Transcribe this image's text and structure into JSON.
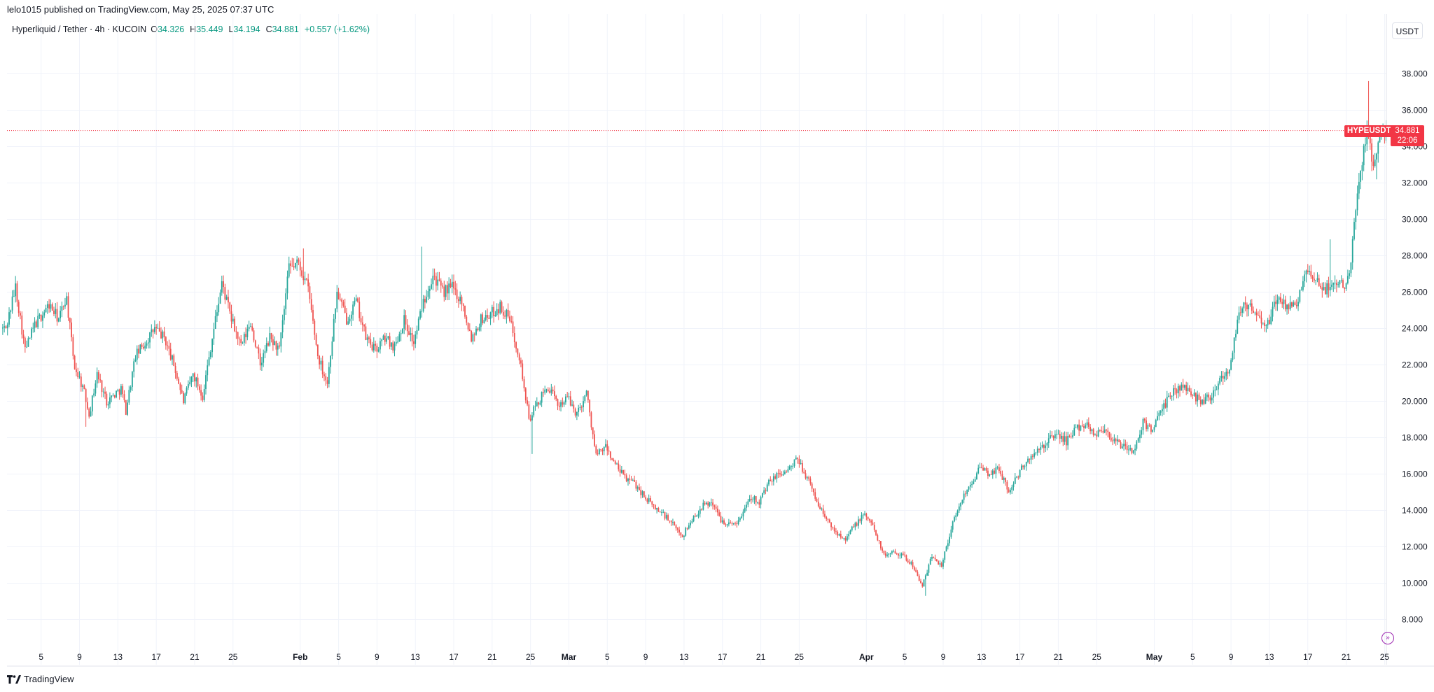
{
  "header": {
    "published": "lelo1015 published on TradingView.com, May 25, 2025 07:37 UTC"
  },
  "legend": {
    "symbol": "Hyperliquid / Tether · 4h · KUCOIN",
    "open_label": "O",
    "open": "34.326",
    "high_label": "H",
    "high": "35.449",
    "low_label": "L",
    "low": "34.194",
    "close_label": "C",
    "close": "34.881",
    "change": "+0.557 (+1.62%)"
  },
  "currency_button": "USDT",
  "price_tag": {
    "symbol": "HYPEUSDT",
    "price": "34.881",
    "countdown": "22:06"
  },
  "footer": {
    "brand": "TradingView"
  },
  "goto_icon": "goto-realtime-icon",
  "colors": {
    "up": "#26a69a",
    "down": "#ef5350",
    "grid": "#f0f3fa",
    "axis_text": "#131722",
    "last_price": "#f23645"
  },
  "chart_data": {
    "type": "candlestick",
    "title": "Hyperliquid / Tether · 4h · KUCOIN",
    "ylim": [
      7,
      39
    ],
    "y_ticks": [
      "8.000",
      "10.000",
      "12.000",
      "14.000",
      "16.000",
      "18.000",
      "20.000",
      "22.000",
      "24.000",
      "26.000",
      "28.000",
      "30.000",
      "32.000",
      "34.000",
      "36.000",
      "38.000"
    ],
    "x_ticks": [
      {
        "day": 5,
        "label": "5",
        "bold": false
      },
      {
        "day": 9,
        "label": "9",
        "bold": false
      },
      {
        "day": 13,
        "label": "13",
        "bold": false
      },
      {
        "day": 17,
        "label": "17",
        "bold": false
      },
      {
        "day": 21,
        "label": "21",
        "bold": false
      },
      {
        "day": 25,
        "label": "25",
        "bold": false
      },
      {
        "day": 32,
        "label": "Feb",
        "bold": true
      },
      {
        "day": 36,
        "label": "5",
        "bold": false
      },
      {
        "day": 40,
        "label": "9",
        "bold": false
      },
      {
        "day": 44,
        "label": "13",
        "bold": false
      },
      {
        "day": 48,
        "label": "17",
        "bold": false
      },
      {
        "day": 52,
        "label": "21",
        "bold": false
      },
      {
        "day": 56,
        "label": "25",
        "bold": false
      },
      {
        "day": 60,
        "label": "Mar",
        "bold": true
      },
      {
        "day": 64,
        "label": "5",
        "bold": false
      },
      {
        "day": 68,
        "label": "9",
        "bold": false
      },
      {
        "day": 72,
        "label": "13",
        "bold": false
      },
      {
        "day": 76,
        "label": "17",
        "bold": false
      },
      {
        "day": 80,
        "label": "21",
        "bold": false
      },
      {
        "day": 84,
        "label": "25",
        "bold": false
      },
      {
        "day": 91,
        "label": "Apr",
        "bold": true
      },
      {
        "day": 95,
        "label": "5",
        "bold": false
      },
      {
        "day": 99,
        "label": "9",
        "bold": false
      },
      {
        "day": 103,
        "label": "13",
        "bold": false
      },
      {
        "day": 107,
        "label": "17",
        "bold": false
      },
      {
        "day": 111,
        "label": "21",
        "bold": false
      },
      {
        "day": 115,
        "label": "25",
        "bold": false
      },
      {
        "day": 121,
        "label": "May",
        "bold": true
      },
      {
        "day": 125,
        "label": "5",
        "bold": false
      },
      {
        "day": 129,
        "label": "9",
        "bold": false
      },
      {
        "day": 133,
        "label": "13",
        "bold": false
      },
      {
        "day": 137,
        "label": "17",
        "bold": false
      },
      {
        "day": 141,
        "label": "21",
        "bold": false
      },
      {
        "day": 145,
        "label": "25",
        "bold": false
      }
    ],
    "last_price": 34.881,
    "anchors": [
      {
        "day": 1.5,
        "price": 24.0
      },
      {
        "day": 2.5,
        "price": 26.3
      },
      {
        "day": 3.5,
        "price": 22.8
      },
      {
        "day": 4.5,
        "price": 24.2
      },
      {
        "day": 6,
        "price": 25.3
      },
      {
        "day": 7,
        "price": 24.5
      },
      {
        "day": 7.8,
        "price": 25.8
      },
      {
        "day": 8.6,
        "price": 22.0
      },
      {
        "day": 9.5,
        "price": 20.8
      },
      {
        "day": 10.2,
        "price": 19.3
      },
      {
        "day": 11,
        "price": 21.5
      },
      {
        "day": 12,
        "price": 20.0
      },
      {
        "day": 13.5,
        "price": 20.7
      },
      {
        "day": 14,
        "price": 19.5
      },
      {
        "day": 15,
        "price": 22.5
      },
      {
        "day": 16,
        "price": 23.2
      },
      {
        "day": 17,
        "price": 24.0
      },
      {
        "day": 18,
        "price": 23.5
      },
      {
        "day": 19,
        "price": 22.0
      },
      {
        "day": 20,
        "price": 20.0
      },
      {
        "day": 21,
        "price": 21.5
      },
      {
        "day": 22,
        "price": 20.3
      },
      {
        "day": 23,
        "price": 23.5
      },
      {
        "day": 24,
        "price": 26.5
      },
      {
        "day": 25,
        "price": 24.5
      },
      {
        "day": 26,
        "price": 23.0
      },
      {
        "day": 27,
        "price": 24.3
      },
      {
        "day": 28,
        "price": 22.0
      },
      {
        "day": 29,
        "price": 23.5
      },
      {
        "day": 30,
        "price": 22.8
      },
      {
        "day": 31,
        "price": 27.3
      },
      {
        "day": 32,
        "price": 27.6
      },
      {
        "day": 33,
        "price": 26.2
      },
      {
        "day": 34,
        "price": 22.5
      },
      {
        "day": 35,
        "price": 21.0
      },
      {
        "day": 36,
        "price": 26.0
      },
      {
        "day": 37,
        "price": 24.5
      },
      {
        "day": 38,
        "price": 25.5
      },
      {
        "day": 39,
        "price": 23.5
      },
      {
        "day": 40,
        "price": 22.8
      },
      {
        "day": 41,
        "price": 23.5
      },
      {
        "day": 42,
        "price": 23.0
      },
      {
        "day": 43,
        "price": 24.5
      },
      {
        "day": 44,
        "price": 23.2
      },
      {
        "day": 45,
        "price": 25.5
      },
      {
        "day": 46,
        "price": 27.0
      },
      {
        "day": 47,
        "price": 26.0
      },
      {
        "day": 48,
        "price": 26.3
      },
      {
        "day": 49,
        "price": 25.5
      },
      {
        "day": 50,
        "price": 23.5
      },
      {
        "day": 51,
        "price": 24.5
      },
      {
        "day": 52,
        "price": 24.8
      },
      {
        "day": 53,
        "price": 25.2
      },
      {
        "day": 54,
        "price": 24.5
      },
      {
        "day": 55,
        "price": 22.5
      },
      {
        "day": 56,
        "price": 19.0
      },
      {
        "day": 57,
        "price": 20.0
      },
      {
        "day": 58,
        "price": 20.8
      },
      {
        "day": 59,
        "price": 19.8
      },
      {
        "day": 60,
        "price": 20.2
      },
      {
        "day": 61,
        "price": 19.3
      },
      {
        "day": 62,
        "price": 20.5
      },
      {
        "day": 63,
        "price": 17.0
      },
      {
        "day": 64,
        "price": 17.5
      },
      {
        "day": 65,
        "price": 16.5
      },
      {
        "day": 66,
        "price": 15.8
      },
      {
        "day": 67,
        "price": 15.5
      },
      {
        "day": 68,
        "price": 14.8
      },
      {
        "day": 69,
        "price": 14.2
      },
      {
        "day": 70,
        "price": 13.8
      },
      {
        "day": 71,
        "price": 13.2
      },
      {
        "day": 72,
        "price": 12.6
      },
      {
        "day": 73,
        "price": 13.5
      },
      {
        "day": 74,
        "price": 14.2
      },
      {
        "day": 75,
        "price": 14.5
      },
      {
        "day": 76,
        "price": 13.5
      },
      {
        "day": 77,
        "price": 13.2
      },
      {
        "day": 78,
        "price": 13.5
      },
      {
        "day": 79,
        "price": 14.8
      },
      {
        "day": 80,
        "price": 14.5
      },
      {
        "day": 81,
        "price": 15.5
      },
      {
        "day": 82,
        "price": 16.0
      },
      {
        "day": 83,
        "price": 16.2
      },
      {
        "day": 84,
        "price": 16.8
      },
      {
        "day": 85,
        "price": 15.8
      },
      {
        "day": 86,
        "price": 14.5
      },
      {
        "day": 87,
        "price": 13.5
      },
      {
        "day": 88,
        "price": 12.8
      },
      {
        "day": 89,
        "price": 12.5
      },
      {
        "day": 90,
        "price": 13.2
      },
      {
        "day": 91,
        "price": 13.8
      },
      {
        "day": 92,
        "price": 13.0
      },
      {
        "day": 93,
        "price": 11.5
      },
      {
        "day": 94,
        "price": 11.8
      },
      {
        "day": 95,
        "price": 11.5
      },
      {
        "day": 96,
        "price": 11.0
      },
      {
        "day": 97,
        "price": 9.8
      },
      {
        "day": 98,
        "price": 11.5
      },
      {
        "day": 99,
        "price": 11.0
      },
      {
        "day": 100,
        "price": 13.0
      },
      {
        "day": 101,
        "price": 14.5
      },
      {
        "day": 102,
        "price": 15.5
      },
      {
        "day": 103,
        "price": 16.3
      },
      {
        "day": 104,
        "price": 16.0
      },
      {
        "day": 105,
        "price": 16.3
      },
      {
        "day": 106,
        "price": 15.0
      },
      {
        "day": 107,
        "price": 16.0
      },
      {
        "day": 108,
        "price": 16.8
      },
      {
        "day": 109,
        "price": 17.2
      },
      {
        "day": 110,
        "price": 17.8
      },
      {
        "day": 111,
        "price": 18.2
      },
      {
        "day": 112,
        "price": 17.8
      },
      {
        "day": 113,
        "price": 18.5
      },
      {
        "day": 114,
        "price": 18.8
      },
      {
        "day": 115,
        "price": 18.2
      },
      {
        "day": 116,
        "price": 18.5
      },
      {
        "day": 117,
        "price": 17.8
      },
      {
        "day": 118,
        "price": 17.5
      },
      {
        "day": 119,
        "price": 17.2
      },
      {
        "day": 120,
        "price": 18.8
      },
      {
        "day": 121,
        "price": 18.5
      },
      {
        "day": 122,
        "price": 19.5
      },
      {
        "day": 123,
        "price": 20.5
      },
      {
        "day": 124,
        "price": 20.8
      },
      {
        "day": 125,
        "price": 20.5
      },
      {
        "day": 126,
        "price": 20.0
      },
      {
        "day": 127,
        "price": 20.3
      },
      {
        "day": 128,
        "price": 21.2
      },
      {
        "day": 129,
        "price": 21.8
      },
      {
        "day": 130,
        "price": 25.0
      },
      {
        "day": 131,
        "price": 25.3
      },
      {
        "day": 132,
        "price": 24.5
      },
      {
        "day": 133,
        "price": 24.2
      },
      {
        "day": 134,
        "price": 25.8
      },
      {
        "day": 135,
        "price": 25.0
      },
      {
        "day": 136,
        "price": 25.5
      },
      {
        "day": 137,
        "price": 27.0
      },
      {
        "day": 138,
        "price": 26.5
      },
      {
        "day": 139,
        "price": 26.2
      },
      {
        "day": 140,
        "price": 26.5
      },
      {
        "day": 141,
        "price": 26.5
      },
      {
        "day": 141.6,
        "price": 27.5
      },
      {
        "day": 142.2,
        "price": 31.0
      },
      {
        "day": 142.8,
        "price": 33.0
      },
      {
        "day": 143.4,
        "price": 35.0
      },
      {
        "day": 144,
        "price": 33.0
      },
      {
        "day": 144.6,
        "price": 34.5
      },
      {
        "day": 145,
        "price": 34.9
      }
    ],
    "extremes": [
      {
        "day": 143.3,
        "price": 37.6
      },
      {
        "day": 144.1,
        "price": 32.2
      },
      {
        "day": 97.1,
        "price": 9.3
      },
      {
        "day": 44.6,
        "price": 28.5
      },
      {
        "day": 32.4,
        "price": 28.4
      },
      {
        "day": 139.3,
        "price": 28.9
      },
      {
        "day": 9.7,
        "price": 18.6
      },
      {
        "day": 56.2,
        "price": 17.1
      }
    ]
  }
}
